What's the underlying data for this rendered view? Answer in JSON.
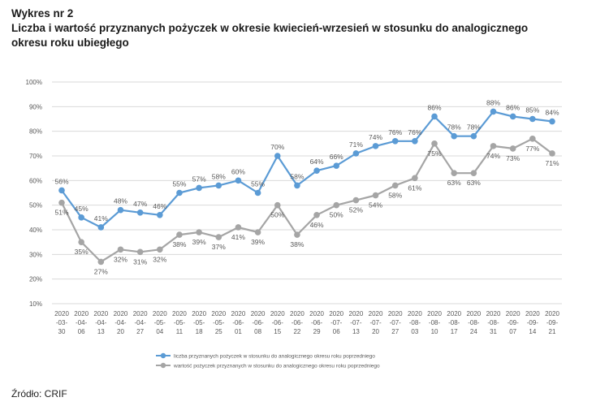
{
  "header": {
    "figure_no": "Wykres nr 2",
    "title_line1": "Liczba i wartość przyznanych pożyczek w okresie kwiecień-wrzesień w stosunku do analogicznego",
    "title_line2": "okresu roku ubiegłego"
  },
  "source": "Źródło: CRIF",
  "colors": {
    "series1": "#5b9bd5",
    "series2": "#a5a5a5",
    "grid": "#d9d9d9",
    "text": "#595959"
  },
  "chart_data": {
    "type": "line",
    "title": "",
    "xlabel": "",
    "ylabel": "",
    "ylim": [
      10,
      100
    ],
    "y_ticks": [
      "10%",
      "20%",
      "30%",
      "40%",
      "50%",
      "60%",
      "70%",
      "80%",
      "90%",
      "100%"
    ],
    "grid": true,
    "legend_position": "bottom",
    "categories": [
      [
        "2020",
        "-03-",
        "30"
      ],
      [
        "2020",
        "-04-",
        "06"
      ],
      [
        "2020",
        "-04-",
        "13"
      ],
      [
        "2020",
        "-04-",
        "20"
      ],
      [
        "2020",
        "-04-",
        "27"
      ],
      [
        "2020",
        "-05-",
        "04"
      ],
      [
        "2020",
        "-05-",
        "11"
      ],
      [
        "2020",
        "-05-",
        "18"
      ],
      [
        "2020",
        "-05-",
        "25"
      ],
      [
        "2020",
        "-06-",
        "01"
      ],
      [
        "2020",
        "-06-",
        "08"
      ],
      [
        "2020",
        "-06-",
        "15"
      ],
      [
        "2020",
        "-06-",
        "22"
      ],
      [
        "2020",
        "-06-",
        "29"
      ],
      [
        "2020",
        "-07-",
        "06"
      ],
      [
        "2020",
        "-07-",
        "13"
      ],
      [
        "2020",
        "-07-",
        "20"
      ],
      [
        "2020",
        "-07-",
        "27"
      ],
      [
        "2020",
        "-08-",
        "03"
      ],
      [
        "2020",
        "-08-",
        "10"
      ],
      [
        "2020",
        "-08-",
        "17"
      ],
      [
        "2020",
        "-08-",
        "24"
      ],
      [
        "2020",
        "-08-",
        "31"
      ],
      [
        "2020",
        "-09-",
        "07"
      ],
      [
        "2020",
        "-09-",
        "14"
      ],
      [
        "2020",
        "-09-",
        "21"
      ]
    ],
    "series": [
      {
        "name": "liczba przyznanych pożyczek w stosunku do analogicznego okresu roku poprzedniego",
        "values": [
          56,
          45,
          41,
          48,
          47,
          46,
          55,
          57,
          58,
          60,
          55,
          70,
          58,
          64,
          66,
          71,
          74,
          76,
          76,
          86,
          78,
          78,
          88,
          86,
          85,
          84
        ],
        "labels": [
          "56%",
          "45%",
          "41%",
          "48%",
          "47%",
          "46%",
          "55%",
          "57%",
          "58%",
          "60%",
          "55%",
          "70%",
          "58%",
          "64%",
          "66%",
          "71%",
          "74%",
          "76%",
          "76%",
          "86%",
          "78%",
          "78%",
          "88%",
          "86%",
          "85%",
          "84%"
        ]
      },
      {
        "name": "wartość pożyczek przyznanych w stosunku do analogicznego okresu roku poprzedniego",
        "values": [
          51,
          35,
          27,
          32,
          31,
          32,
          38,
          39,
          37,
          41,
          39,
          50,
          38,
          46,
          50,
          52,
          54,
          58,
          61,
          75,
          63,
          63,
          74,
          73,
          77,
          71
        ],
        "labels": [
          "51%",
          "35%",
          "27%",
          "32%",
          "31%",
          "32%",
          "38%",
          "39%",
          "37%",
          "41%",
          "39%",
          "50%",
          "38%",
          "46%",
          "50%",
          "52%",
          "54%",
          "58%",
          "61%",
          "75%",
          "63%",
          "63%",
          "74%",
          "73%",
          "77%",
          "71%"
        ]
      }
    ]
  }
}
